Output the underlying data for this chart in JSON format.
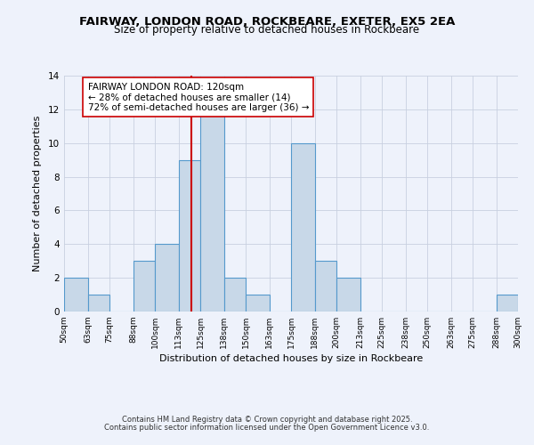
{
  "title": "FAIRWAY, LONDON ROAD, ROCKBEARE, EXETER, EX5 2EA",
  "subtitle": "Size of property relative to detached houses in Rockbeare",
  "xlabel": "Distribution of detached houses by size in Rockbeare",
  "ylabel": "Number of detached properties",
  "bin_edges": [
    50,
    63,
    75,
    88,
    100,
    113,
    125,
    138,
    150,
    163,
    175,
    188,
    200,
    213,
    225,
    238,
    250,
    263,
    275,
    288,
    300
  ],
  "bin_counts": [
    2,
    1,
    0,
    3,
    4,
    9,
    12,
    2,
    1,
    0,
    10,
    3,
    2,
    0,
    0,
    0,
    0,
    0,
    0,
    1
  ],
  "bar_color": "#c8d8e8",
  "bar_edge_color": "#5599cc",
  "ref_line_x": 120,
  "ref_line_color": "#cc0000",
  "annotation_title": "FAIRWAY LONDON ROAD: 120sqm",
  "annotation_line1": "← 28% of detached houses are smaller (14)",
  "annotation_line2": "72% of semi-detached houses are larger (36) →",
  "annotation_box_color": "#ffffff",
  "annotation_box_edge_color": "#cc0000",
  "ylim": [
    0,
    14
  ],
  "yticks": [
    0,
    2,
    4,
    6,
    8,
    10,
    12,
    14
  ],
  "footer_line1": "Contains HM Land Registry data © Crown copyright and database right 2025.",
  "footer_line2": "Contains public sector information licensed under the Open Government Licence v3.0.",
  "background_color": "#eef2fb",
  "grid_color": "#c8d0e0",
  "tick_labels": [
    "50sqm",
    "63sqm",
    "75sqm",
    "88sqm",
    "100sqm",
    "113sqm",
    "125sqm",
    "138sqm",
    "150sqm",
    "163sqm",
    "175sqm",
    "188sqm",
    "200sqm",
    "213sqm",
    "225sqm",
    "238sqm",
    "250sqm",
    "263sqm",
    "275sqm",
    "288sqm",
    "300sqm"
  ],
  "title_fontsize": 9.5,
  "subtitle_fontsize": 8.5,
  "xlabel_fontsize": 8.0,
  "ylabel_fontsize": 8.0,
  "xtick_fontsize": 6.5,
  "ytick_fontsize": 7.5,
  "footer_fontsize": 6.0,
  "annotation_fontsize": 7.5
}
